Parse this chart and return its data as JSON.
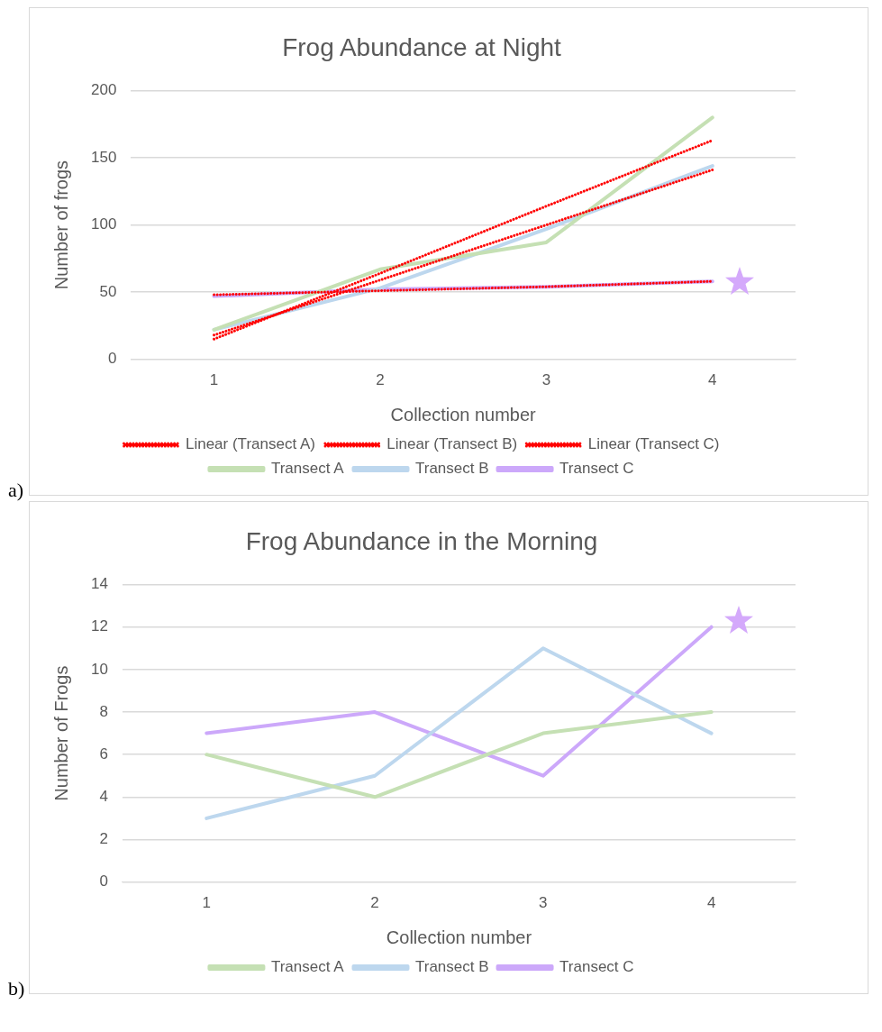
{
  "chart_data": [
    {
      "type": "line",
      "title": "Frog Abundance at Night",
      "xlabel": "Collection number",
      "ylabel": "Number of frogs",
      "categories": [
        "1",
        "2",
        "3",
        "4"
      ],
      "ylim": [
        0,
        200
      ],
      "yticks": [
        0,
        50,
        100,
        150,
        200
      ],
      "grid": "y",
      "legend": "bottom",
      "marker": "none",
      "line_style": "solid",
      "annotations": [
        "a)"
      ],
      "series": [
        {
          "name": "Transect A",
          "color": "#c5e0b4",
          "values": [
            22,
            67,
            87,
            180
          ]
        },
        {
          "name": "Transect B",
          "color": "#bdd7ee",
          "values": [
            22,
            53,
            97,
            144
          ]
        },
        {
          "name": "Transect C",
          "color": "#cca8fa",
          "values": [
            47,
            52,
            54,
            58
          ]
        },
        {
          "name": "Linear (Transect A)",
          "color": "#ff0000",
          "line_style": "dotted",
          "values": [
            15,
            64,
            114,
            163
          ]
        },
        {
          "name": "Linear (Transect B)",
          "color": "#ff0000",
          "line_style": "dotted",
          "values": [
            18,
            59,
            100,
            141
          ]
        },
        {
          "name": "Linear (Transect C)",
          "color": "#ff0000",
          "line_style": "dotted",
          "values": [
            48,
            51,
            54,
            58
          ]
        }
      ]
    },
    {
      "type": "line",
      "title": "Frog Abundance in the Morning",
      "xlabel": "Collection number",
      "ylabel": "Number of Frogs",
      "categories": [
        "1",
        "2",
        "3",
        "4"
      ],
      "ylim": [
        0,
        14
      ],
      "yticks": [
        0,
        2,
        4,
        6,
        8,
        10,
        12,
        14
      ],
      "grid": "y",
      "legend": "bottom",
      "marker": "none",
      "line_style": "solid",
      "annotations": [
        "b)"
      ],
      "series": [
        {
          "name": "Transect A",
          "color": "#c5e0b4",
          "values": [
            6,
            4,
            7,
            8
          ]
        },
        {
          "name": "Transect B",
          "color": "#bdd7ee",
          "values": [
            3,
            5,
            11,
            7
          ]
        },
        {
          "name": "Transect C",
          "color": "#cca8fa",
          "values": [
            7,
            8,
            5,
            12
          ]
        }
      ]
    }
  ]
}
